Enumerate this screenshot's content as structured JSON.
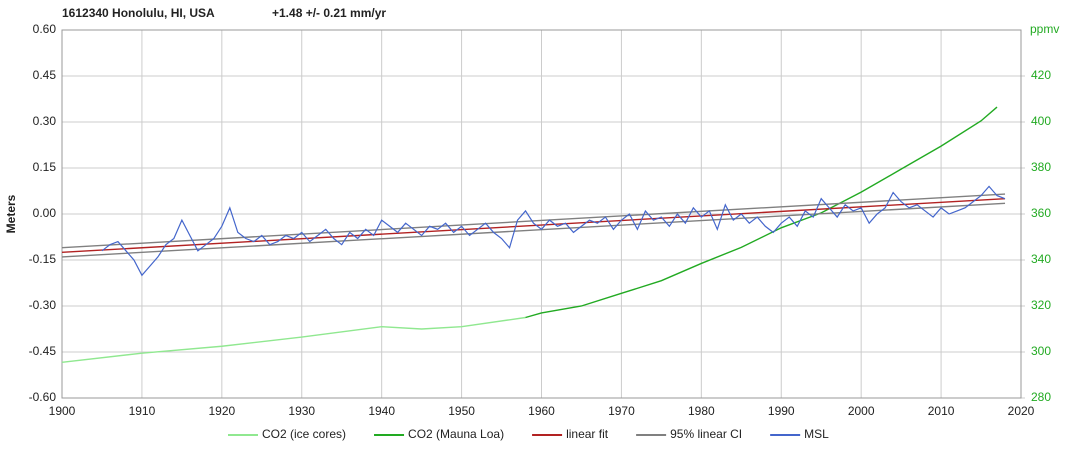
{
  "chart_data": {
    "type": "line",
    "title": "1612340 Honolulu, HI, USA",
    "subtitle": "+1.48 +/- 0.21 mm/yr",
    "y_label": "Meters",
    "y2_label": "ppmv",
    "xlim": [
      1900,
      2020
    ],
    "xticks": [
      1900,
      1910,
      1920,
      1930,
      1940,
      1950,
      1960,
      1970,
      1980,
      1990,
      2000,
      2010,
      2020
    ],
    "ylim": [
      -0.6,
      0.6
    ],
    "yticks": [
      {
        "value": -0.6,
        "label": "-0.60"
      },
      {
        "value": -0.45,
        "label": "-0.45"
      },
      {
        "value": -0.3,
        "label": "-0.30"
      },
      {
        "value": -0.15,
        "label": "-0.15"
      },
      {
        "value": 0,
        "label": "0.00"
      },
      {
        "value": 0.15,
        "label": "0.15"
      },
      {
        "value": 0.3,
        "label": "0.30"
      },
      {
        "value": 0.45,
        "label": "0.45"
      },
      {
        "value": 0.6,
        "label": "0.60"
      }
    ],
    "y2lim": [
      280,
      440
    ],
    "y2ticks": [
      280,
      300,
      320,
      340,
      360,
      380,
      400,
      420
    ],
    "grid": true,
    "legend": "bottom",
    "series": [
      {
        "name": "CO2 (ice cores)",
        "color": "#90e890",
        "axis": "y2",
        "x": [
          1900,
          1910,
          1920,
          1930,
          1940,
          1945,
          1950,
          1958
        ],
        "values": [
          295.5,
          299.5,
          302.5,
          306.5,
          311,
          310,
          311,
          315
        ]
      },
      {
        "name": "CO2 (Mauna Loa)",
        "color": "#22aa22",
        "axis": "y2",
        "x": [
          1958,
          1960,
          1965,
          1970,
          1975,
          1980,
          1985,
          1990,
          1995,
          2000,
          2005,
          2010,
          2015,
          2017
        ],
        "values": [
          315,
          317,
          320,
          325.5,
          331,
          338.5,
          345.5,
          354,
          360.5,
          369.5,
          379.5,
          389.5,
          400.5,
          406.5
        ]
      },
      {
        "name": "linear fit",
        "color": "#b22222",
        "x": [
          1900,
          2018
        ],
        "values": [
          -0.125,
          0.05
        ]
      },
      {
        "name": "95% linear CI",
        "color": "#808080",
        "x": [
          1900,
          2018
        ],
        "upper": [
          -0.11,
          0.065
        ],
        "lower": [
          -0.14,
          0.035
        ]
      },
      {
        "name": "MSL",
        "color": "#4466cc",
        "x": [
          1905,
          1906,
          1907,
          1908,
          1909,
          1910,
          1911,
          1912,
          1913,
          1914,
          1915,
          1916,
          1917,
          1918,
          1919,
          1920,
          1921,
          1922,
          1923,
          1924,
          1925,
          1926,
          1927,
          1928,
          1929,
          1930,
          1931,
          1932,
          1933,
          1934,
          1935,
          1936,
          1937,
          1938,
          1939,
          1940,
          1941,
          1942,
          1943,
          1944,
          1945,
          1946,
          1947,
          1948,
          1949,
          1950,
          1951,
          1952,
          1953,
          1954,
          1955,
          1956,
          1957,
          1958,
          1959,
          1960,
          1961,
          1962,
          1963,
          1964,
          1965,
          1966,
          1967,
          1968,
          1969,
          1970,
          1971,
          1972,
          1973,
          1974,
          1975,
          1976,
          1977,
          1978,
          1979,
          1980,
          1981,
          1982,
          1983,
          1984,
          1985,
          1986,
          1987,
          1988,
          1989,
          1990,
          1991,
          1992,
          1993,
          1994,
          1995,
          1996,
          1997,
          1998,
          1999,
          2000,
          2001,
          2002,
          2003,
          2004,
          2005,
          2006,
          2007,
          2008,
          2009,
          2010,
          2011,
          2012,
          2013,
          2014,
          2015,
          2016,
          2017,
          2018
        ],
        "values": [
          -0.12,
          -0.1,
          -0.09,
          -0.12,
          -0.15,
          -0.2,
          -0.17,
          -0.14,
          -0.1,
          -0.08,
          -0.02,
          -0.07,
          -0.12,
          -0.1,
          -0.08,
          -0.04,
          0.02,
          -0.06,
          -0.08,
          -0.09,
          -0.07,
          -0.1,
          -0.09,
          -0.07,
          -0.08,
          -0.06,
          -0.09,
          -0.07,
          -0.05,
          -0.08,
          -0.1,
          -0.06,
          -0.08,
          -0.05,
          -0.07,
          -0.02,
          -0.04,
          -0.06,
          -0.03,
          -0.05,
          -0.07,
          -0.04,
          -0.05,
          -0.03,
          -0.06,
          -0.04,
          -0.07,
          -0.05,
          -0.03,
          -0.06,
          -0.08,
          -0.11,
          -0.02,
          0.01,
          -0.03,
          -0.05,
          -0.02,
          -0.04,
          -0.03,
          -0.06,
          -0.04,
          -0.02,
          -0.03,
          -0.01,
          -0.05,
          -0.02,
          0.0,
          -0.05,
          0.01,
          -0.02,
          -0.01,
          -0.04,
          0.0,
          -0.03,
          0.02,
          -0.01,
          0.01,
          -0.05,
          0.03,
          -0.02,
          0.0,
          -0.03,
          -0.01,
          -0.04,
          -0.06,
          -0.03,
          -0.01,
          -0.04,
          0.01,
          -0.01,
          0.05,
          0.02,
          -0.01,
          0.03,
          0.01,
          0.02,
          -0.03,
          0.0,
          0.02,
          0.07,
          0.04,
          0.02,
          0.03,
          0.01,
          -0.01,
          0.02,
          0.0,
          0.01,
          0.02,
          0.04,
          0.06,
          0.09,
          0.06,
          0.05
        ]
      }
    ]
  }
}
